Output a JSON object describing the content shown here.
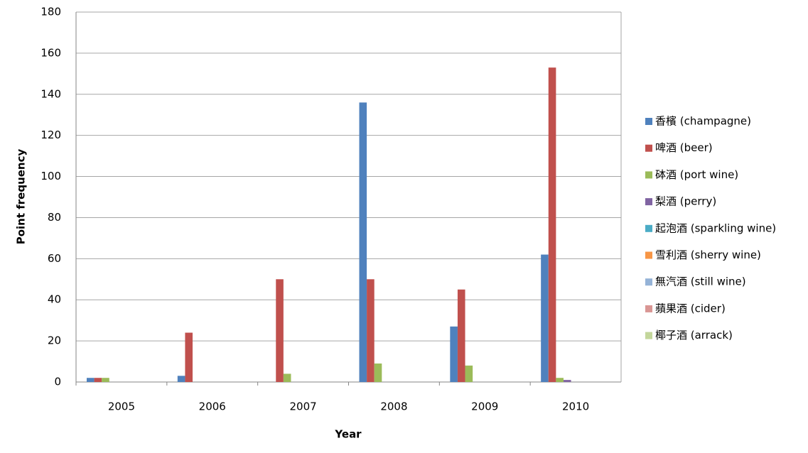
{
  "chart_data": {
    "type": "bar",
    "x_label": "Year",
    "y_label": "Point frequency",
    "categories": [
      "2005",
      "2006",
      "2007",
      "2008",
      "2009",
      "2010"
    ],
    "series": [
      {
        "name": "香檳 (champagne)",
        "color": "#4f81bd",
        "values": [
          2,
          3,
          0,
          136,
          27,
          62
        ]
      },
      {
        "name": "啤酒 (beer)",
        "color": "#c0504d",
        "values": [
          2,
          24,
          50,
          50,
          45,
          153
        ]
      },
      {
        "name": "砵酒 (port wine)",
        "color": "#9bbb59",
        "values": [
          2,
          0,
          4,
          9,
          8,
          2
        ]
      },
      {
        "name": "梨酒 (perry)",
        "color": "#8064a2",
        "values": [
          0,
          0,
          0,
          0,
          0,
          1
        ]
      },
      {
        "name": "起泡酒 (sparkling wine)",
        "color": "#4bacc6",
        "values": [
          0,
          0,
          0,
          0,
          0,
          0
        ]
      },
      {
        "name": "雪利酒 (sherry wine)",
        "color": "#f79646",
        "values": [
          0,
          0,
          0,
          0,
          0,
          0
        ]
      },
      {
        "name": "無汽酒 (still wine)",
        "color": "#95b3d7",
        "values": [
          0,
          0,
          0,
          0,
          0,
          0
        ]
      },
      {
        "name": "蘋果酒 (cider)",
        "color": "#d99694",
        "values": [
          0,
          0,
          0,
          0,
          0,
          0
        ]
      },
      {
        "name": "椰子酒 (arrack)",
        "color": "#c3d69b",
        "values": [
          0,
          0,
          0,
          0,
          0,
          0
        ]
      }
    ],
    "ylim": [
      0,
      180
    ],
    "yticks": [
      0,
      20,
      40,
      60,
      80,
      100,
      120,
      140,
      160,
      180
    ],
    "grid": true,
    "legend": "right"
  }
}
